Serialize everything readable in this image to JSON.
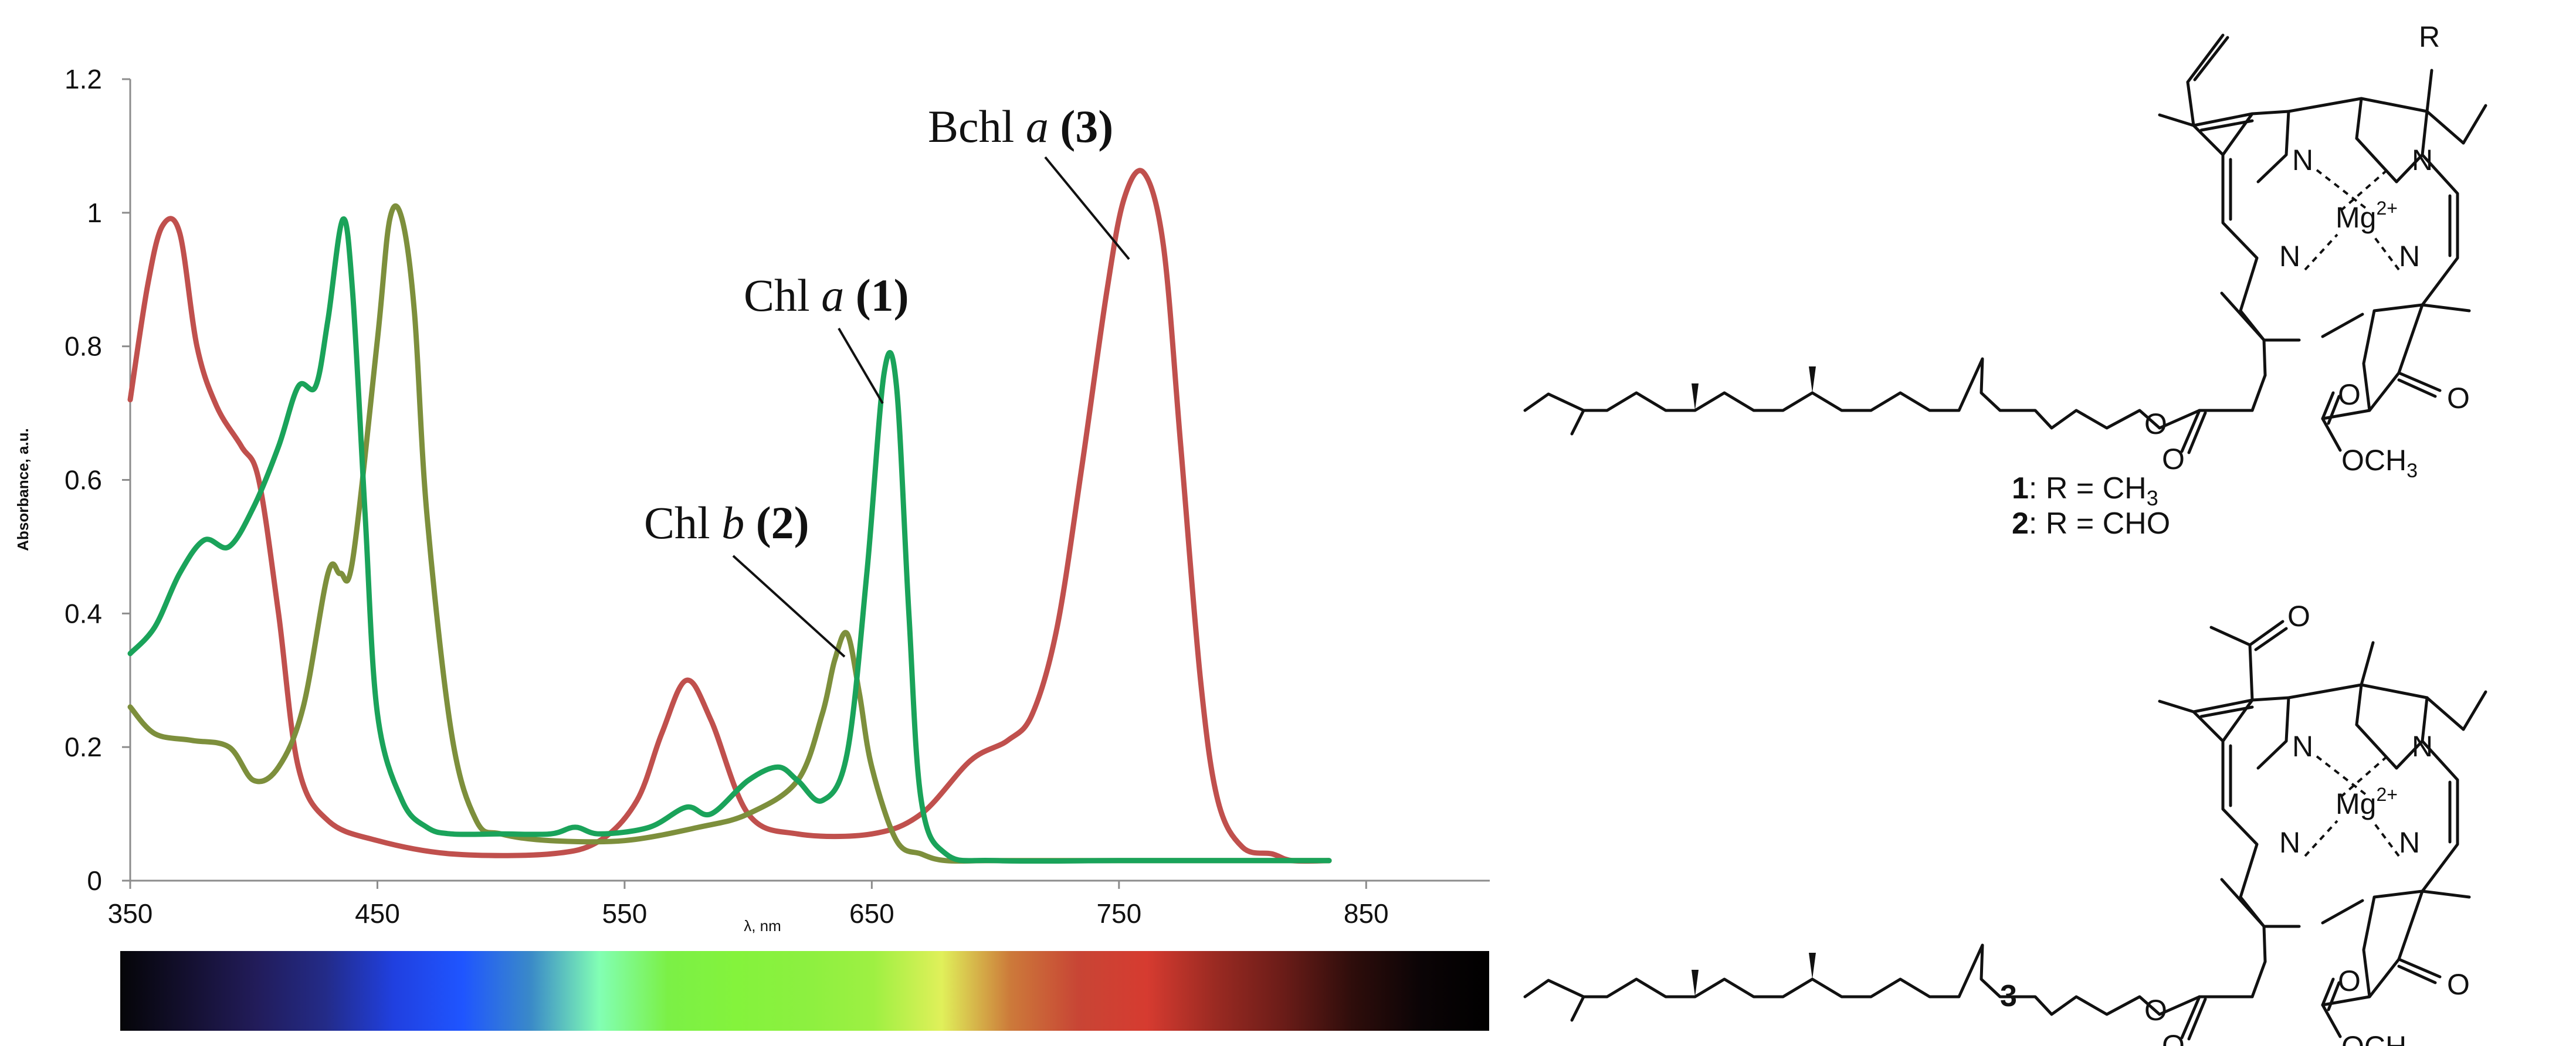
{
  "chart_data": {
    "type": "line",
    "xlabel": "λ, nm",
    "ylabel": "Absorbance, a.u.",
    "xlim": [
      350,
      900
    ],
    "ylim": [
      0,
      1.2
    ],
    "x_ticks": [
      "350",
      "450",
      "550",
      "650",
      "750",
      "850"
    ],
    "y_ticks": [
      "0",
      "0.2",
      "0.4",
      "0.6",
      "0.8",
      "1",
      "1.2"
    ],
    "grid": false,
    "series": [
      {
        "name": "Chl a (1)",
        "color": "#1aa35a",
        "x": [
          350,
          360,
          370,
          380,
          390,
          400,
          410,
          418,
          425,
          430,
          436,
          440,
          445,
          450,
          460,
          470,
          480,
          500,
          520,
          530,
          540,
          560,
          575,
          585,
          600,
          612,
          620,
          630,
          640,
          648,
          655,
          660,
          665,
          670,
          680,
          700,
          750,
          800,
          835
        ],
        "y": [
          0.34,
          0.38,
          0.46,
          0.51,
          0.5,
          0.56,
          0.65,
          0.74,
          0.74,
          0.84,
          0.99,
          0.88,
          0.55,
          0.25,
          0.12,
          0.08,
          0.07,
          0.07,
          0.07,
          0.08,
          0.07,
          0.08,
          0.11,
          0.1,
          0.15,
          0.17,
          0.15,
          0.12,
          0.19,
          0.46,
          0.76,
          0.74,
          0.4,
          0.12,
          0.04,
          0.03,
          0.03,
          0.03,
          0.03
        ]
      },
      {
        "name": "Chl b (2)",
        "color": "#7d8f3c",
        "x": [
          350,
          360,
          375,
          390,
          400,
          410,
          420,
          430,
          435,
          440,
          450,
          455,
          460,
          465,
          470,
          480,
          490,
          500,
          520,
          550,
          580,
          600,
          620,
          630,
          635,
          640,
          645,
          650,
          660,
          670,
          680,
          700,
          750,
          835
        ],
        "y": [
          0.26,
          0.22,
          0.21,
          0.2,
          0.15,
          0.17,
          0.26,
          0.46,
          0.46,
          0.48,
          0.81,
          0.99,
          0.99,
          0.85,
          0.55,
          0.22,
          0.09,
          0.07,
          0.06,
          0.06,
          0.08,
          0.1,
          0.15,
          0.25,
          0.33,
          0.37,
          0.28,
          0.17,
          0.06,
          0.04,
          0.03,
          0.03,
          0.03,
          0.03
        ]
      },
      {
        "name": "Bchl a (3)",
        "color": "#c0504d",
        "x": [
          350,
          357,
          363,
          370,
          377,
          385,
          395,
          402,
          410,
          418,
          430,
          450,
          480,
          520,
          540,
          555,
          565,
          575,
          585,
          600,
          620,
          650,
          670,
          690,
          705,
          715,
          725,
          735,
          745,
          752,
          760,
          768,
          775,
          783,
          790,
          800,
          812,
          820,
          835
        ],
        "y": [
          0.72,
          0.89,
          0.98,
          0.97,
          0.8,
          0.71,
          0.65,
          0.6,
          0.4,
          0.17,
          0.09,
          0.06,
          0.04,
          0.04,
          0.06,
          0.12,
          0.22,
          0.3,
          0.24,
          0.1,
          0.07,
          0.07,
          0.1,
          0.18,
          0.21,
          0.25,
          0.38,
          0.62,
          0.88,
          1.02,
          1.06,
          0.95,
          0.65,
          0.3,
          0.12,
          0.05,
          0.04,
          0.03,
          0.03
        ]
      }
    ],
    "annotations": [
      {
        "pre": "Bchl ",
        "italic": "a",
        "bold": " (3)"
      },
      {
        "pre": "Chl ",
        "italic": "a",
        "bold": " (1)"
      },
      {
        "pre": "Chl ",
        "italic": "b",
        "bold": " (2)"
      }
    ],
    "spectrum_bar": {
      "stops": [
        "#050508",
        "#141030",
        "#221c5a",
        "#232b88",
        "#2040e0",
        "#1f55ff",
        "#3a8ac8",
        "#82ffb4",
        "#7bf046",
        "#84f33c",
        "#8cf040",
        "#9ef042",
        "#e0f05a",
        "#cc7a3a",
        "#c84535",
        "#d63b30",
        "#9a2a22",
        "#6a1c18",
        "#2e0d0b",
        "#0b0406",
        "#000000"
      ]
    }
  },
  "structures": {
    "atom_N": "N",
    "metal": "Mg",
    "metal_charge": "2+",
    "r_label": "R",
    "oxygen": "O",
    "methoxy": "OCH",
    "methoxy_sub": "3",
    "compound_1_num": "1",
    "compound_1_text": ": R = CH",
    "compound_1_sub": "3",
    "compound_2_num": "2",
    "compound_2_text": ": R = CHO",
    "compound_3_num": "3"
  }
}
